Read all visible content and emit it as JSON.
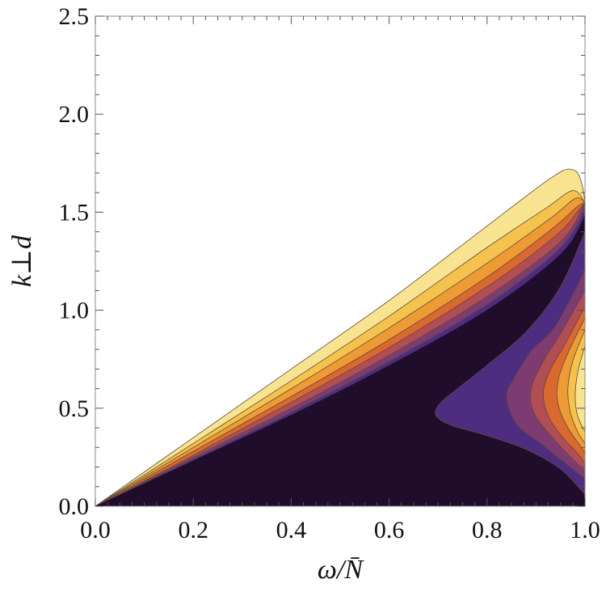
{
  "chart_data": {
    "type": "contour",
    "xlabel": "ω/N̄",
    "ylabel": "k⊥d",
    "xlim": [
      0.0,
      1.0
    ],
    "ylim": [
      0.0,
      2.5
    ],
    "x_ticks": [
      "0.0",
      "0.2",
      "0.4",
      "0.6",
      "0.8",
      "1.0"
    ],
    "y_ticks": [
      "0.0",
      "0.5",
      "1.0",
      "1.5",
      "2.0",
      "2.5"
    ],
    "grid": false,
    "colors": {
      "background": "#ffffff",
      "darkest": "#200d2b",
      "levels": [
        "#4e2d80",
        "#7d3b72",
        "#b14d55",
        "#d9692f",
        "#ee9a35",
        "#f5c34d",
        "#f8e391"
      ],
      "contour_line": "#5e4a3a"
    },
    "regions": [
      {
        "name": "wedge-outer",
        "level": 6,
        "boundary": [
          [
            0.0,
            0.0
          ],
          [
            0.2,
            0.35
          ],
          [
            0.4,
            0.7
          ],
          [
            0.6,
            1.05
          ],
          [
            0.8,
            1.43
          ],
          [
            0.9,
            1.62
          ],
          [
            0.94,
            1.69
          ],
          [
            0.965,
            1.72
          ],
          [
            0.985,
            1.7
          ],
          [
            0.995,
            1.63
          ],
          [
            1.0,
            1.55
          ]
        ]
      },
      {
        "name": "wedge-level-5",
        "level": 5,
        "boundary": [
          [
            0.0,
            0.0
          ],
          [
            0.2,
            0.32
          ],
          [
            0.4,
            0.64
          ],
          [
            0.6,
            0.97
          ],
          [
            0.8,
            1.32
          ],
          [
            0.92,
            1.52
          ],
          [
            0.975,
            1.61
          ],
          [
            1.0,
            1.55
          ]
        ]
      },
      {
        "name": "wedge-level-4",
        "level": 4,
        "boundary": [
          [
            0.0,
            0.0
          ],
          [
            0.2,
            0.3
          ],
          [
            0.4,
            0.6
          ],
          [
            0.6,
            0.91
          ],
          [
            0.8,
            1.24
          ],
          [
            0.93,
            1.47
          ],
          [
            0.98,
            1.57
          ],
          [
            1.0,
            1.55
          ]
        ]
      },
      {
        "name": "wedge-level-3",
        "level": 3,
        "boundary": [
          [
            0.0,
            0.0
          ],
          [
            0.2,
            0.28
          ],
          [
            0.4,
            0.56
          ],
          [
            0.6,
            0.85
          ],
          [
            0.8,
            1.17
          ],
          [
            0.93,
            1.41
          ],
          [
            0.985,
            1.53
          ],
          [
            1.0,
            1.55
          ]
        ]
      },
      {
        "name": "wedge-level-2",
        "level": 2,
        "boundary": [
          [
            0.0,
            0.0
          ],
          [
            0.2,
            0.26
          ],
          [
            0.4,
            0.53
          ],
          [
            0.6,
            0.81
          ],
          [
            0.8,
            1.12
          ],
          [
            0.94,
            1.38
          ],
          [
            0.99,
            1.52
          ],
          [
            1.0,
            1.55
          ]
        ]
      },
      {
        "name": "wedge-level-1",
        "level": 1,
        "boundary": [
          [
            0.0,
            0.0
          ],
          [
            0.2,
            0.25
          ],
          [
            0.4,
            0.5
          ],
          [
            0.6,
            0.77
          ],
          [
            0.8,
            1.07
          ],
          [
            0.95,
            1.35
          ],
          [
            1.0,
            1.55
          ]
        ]
      },
      {
        "name": "wedge-level-0",
        "level": 0,
        "boundary": [
          [
            0.0,
            0.0
          ],
          [
            0.2,
            0.24
          ],
          [
            0.4,
            0.48
          ],
          [
            0.6,
            0.74
          ],
          [
            0.8,
            1.03
          ],
          [
            0.95,
            1.32
          ],
          [
            1.0,
            1.52
          ]
        ]
      },
      {
        "name": "lobe-level-0",
        "level": 0,
        "boundary": [
          [
            1.0,
            1.4
          ],
          [
            0.95,
            1.12
          ],
          [
            0.88,
            0.89
          ],
          [
            0.8,
            0.72
          ],
          [
            0.74,
            0.6
          ],
          [
            0.71,
            0.54
          ],
          [
            0.695,
            0.49
          ],
          [
            0.7,
            0.45
          ],
          [
            0.73,
            0.41
          ],
          [
            0.8,
            0.36
          ],
          [
            0.88,
            0.29
          ],
          [
            0.95,
            0.19
          ],
          [
            1.0,
            0.06
          ]
        ]
      },
      {
        "name": "lobe-level-1",
        "level": 1,
        "boundary": [
          [
            1.0,
            1.2
          ],
          [
            0.94,
            0.92
          ],
          [
            0.89,
            0.79
          ],
          [
            0.855,
            0.65
          ],
          [
            0.84,
            0.56
          ],
          [
            0.86,
            0.42
          ],
          [
            0.91,
            0.32
          ],
          [
            0.96,
            0.22
          ],
          [
            1.0,
            0.14
          ]
        ]
      },
      {
        "name": "lobe-level-2",
        "level": 2,
        "boundary": [
          [
            1.0,
            1.1
          ],
          [
            0.95,
            0.88
          ],
          [
            0.915,
            0.74
          ],
          [
            0.89,
            0.6
          ],
          [
            0.895,
            0.48
          ],
          [
            0.93,
            0.36
          ],
          [
            0.975,
            0.24
          ],
          [
            1.0,
            0.18
          ]
        ]
      },
      {
        "name": "lobe-level-3",
        "level": 3,
        "boundary": [
          [
            1.0,
            1.02
          ],
          [
            0.96,
            0.83
          ],
          [
            0.93,
            0.7
          ],
          [
            0.915,
            0.58
          ],
          [
            0.925,
            0.46
          ],
          [
            0.955,
            0.35
          ],
          [
            0.985,
            0.27
          ],
          [
            1.0,
            0.22
          ]
        ]
      },
      {
        "name": "lobe-level-4",
        "level": 4,
        "boundary": [
          [
            1.0,
            0.96
          ],
          [
            0.965,
            0.78
          ],
          [
            0.945,
            0.64
          ],
          [
            0.945,
            0.52
          ],
          [
            0.965,
            0.4
          ],
          [
            0.99,
            0.31
          ],
          [
            1.0,
            0.27
          ]
        ]
      },
      {
        "name": "lobe-level-5",
        "level": 5,
        "boundary": [
          [
            1.0,
            0.9
          ],
          [
            0.975,
            0.74
          ],
          [
            0.965,
            0.6
          ],
          [
            0.97,
            0.48
          ],
          [
            0.985,
            0.38
          ],
          [
            1.0,
            0.32
          ]
        ]
      },
      {
        "name": "lobe-level-6",
        "level": 6,
        "boundary": [
          [
            1.0,
            0.82
          ],
          [
            0.985,
            0.68
          ],
          [
            0.98,
            0.56
          ],
          [
            0.985,
            0.46
          ],
          [
            1.0,
            0.38
          ]
        ]
      }
    ]
  }
}
